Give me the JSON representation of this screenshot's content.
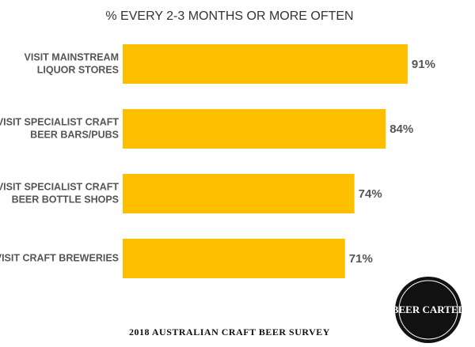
{
  "chart_data": {
    "type": "bar",
    "orientation": "horizontal",
    "title": "% EVERY 2-3 MONTHS OR MORE OFTEN",
    "categories": [
      [
        "VISIT MAINSTREAM",
        "LIQUOR STORES"
      ],
      [
        "VISIT SPECIALIST CRAFT",
        "BEER BARS/PUBS"
      ],
      [
        "VISIT SPECIALIST CRAFT",
        "BEER BOTTLE SHOPS"
      ],
      [
        "VISIT CRAFT BREWERIES"
      ]
    ],
    "values": [
      91,
      84,
      74,
      71
    ],
    "value_labels": [
      "91%",
      "84%",
      "74%",
      "71%"
    ],
    "color": "#fdbf00",
    "footer": "2018 AUSTRALIAN CRAFT BEER SURVEY",
    "logo": "BEER CARTEL"
  }
}
